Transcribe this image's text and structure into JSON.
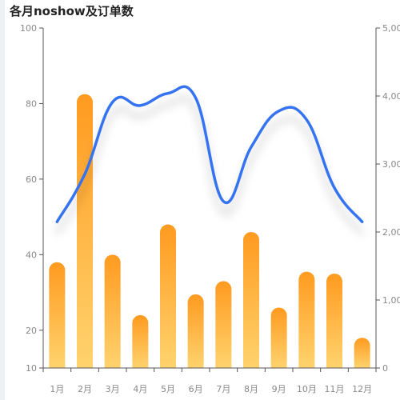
{
  "colors": {
    "bar_top": "#ff9a1f",
    "bar_bottom": "#ffd36e",
    "line": "#3473f2",
    "axis": "#555555",
    "tick_label": "#888888"
  },
  "chart_data": {
    "type": "bar+line",
    "title": "各月noshow及订单数",
    "categories": [
      "1月",
      "2月",
      "3月",
      "4月",
      "5月",
      "6月",
      "7月",
      "8月",
      "9月",
      "10月",
      "11月",
      "12月"
    ],
    "series": [
      {
        "type": "bar",
        "axis": "left",
        "values": [
          38,
          82.5,
          40,
          24,
          48,
          29.5,
          33,
          46,
          26,
          35.5,
          35,
          18
        ]
      },
      {
        "type": "line",
        "axis": "right",
        "smooth": true,
        "values": [
          2150,
          2850,
          3910,
          3860,
          4040,
          3970,
          2450,
          3250,
          3780,
          3650,
          2650,
          2150
        ]
      }
    ],
    "y_left": {
      "min": 10,
      "max": 100,
      "ticks": [
        "10",
        "20",
        "40",
        "60",
        "80",
        "100"
      ],
      "tick_values": [
        10,
        20,
        40,
        60,
        80,
        100
      ]
    },
    "y_right": {
      "min": 0,
      "max": 5000,
      "ticks": [
        "0",
        "1,000",
        "2,000",
        "3,000",
        "4,000",
        "5,000"
      ],
      "tick_values": [
        0,
        1000,
        2000,
        3000,
        4000,
        5000
      ]
    },
    "grid": false,
    "legend": "none"
  }
}
